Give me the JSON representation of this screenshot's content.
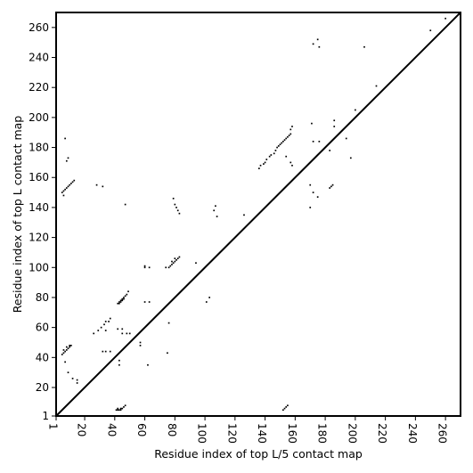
{
  "chart_data": {
    "type": "scatter",
    "xlabel": "Residue index of top L/5 contact map",
    "ylabel": "Residue index of top L contact map",
    "xlim": [
      1,
      270
    ],
    "ylim": [
      1,
      270
    ],
    "x_ticks": [
      1,
      20,
      40,
      60,
      80,
      100,
      120,
      140,
      160,
      180,
      200,
      220,
      240,
      260
    ],
    "y_ticks": [
      1,
      20,
      40,
      60,
      80,
      100,
      120,
      140,
      160,
      180,
      200,
      220,
      240,
      260
    ],
    "x_tick_labels": [
      "1",
      "20",
      "40",
      "60",
      "80",
      "100",
      "120",
      "140",
      "160",
      "180",
      "200",
      "220",
      "240",
      "260"
    ],
    "y_tick_labels": [
      "1",
      "20",
      "40",
      "60",
      "80",
      "100",
      "120",
      "140",
      "160",
      "180",
      "200",
      "220",
      "240",
      "260"
    ],
    "x_tick_rotation_deg": -90,
    "diagonal": {
      "from": [
        1,
        1
      ],
      "to": [
        270,
        270
      ]
    },
    "marker_color": "#000000",
    "series": [
      {
        "region": "above-diagonal",
        "points": [
          [
            5,
            42
          ],
          [
            6,
            43
          ],
          [
            7,
            44
          ],
          [
            8,
            45
          ],
          [
            9,
            46
          ],
          [
            10,
            47
          ],
          [
            11,
            48
          ],
          [
            6,
            45
          ],
          [
            8,
            47
          ],
          [
            10,
            48
          ],
          [
            7,
            37
          ],
          [
            9,
            30
          ],
          [
            12,
            26
          ],
          [
            15,
            23
          ],
          [
            15,
            25
          ],
          [
            5,
            150
          ],
          [
            6,
            151
          ],
          [
            7,
            152
          ],
          [
            8,
            153
          ],
          [
            9,
            154
          ],
          [
            10,
            155
          ],
          [
            11,
            156
          ],
          [
            12,
            157
          ],
          [
            13,
            158
          ],
          [
            6,
            148
          ],
          [
            7,
            186
          ],
          [
            8,
            171
          ],
          [
            9,
            173
          ],
          [
            28,
            155
          ],
          [
            32,
            154
          ],
          [
            29,
            58
          ],
          [
            31,
            60
          ],
          [
            33,
            62
          ],
          [
            34,
            64
          ],
          [
            37,
            66
          ],
          [
            26,
            56
          ],
          [
            34,
            58
          ],
          [
            36,
            64
          ],
          [
            32,
            44
          ],
          [
            34,
            44
          ],
          [
            37,
            44
          ],
          [
            42,
            76
          ],
          [
            43,
            77
          ],
          [
            44,
            78
          ],
          [
            45,
            79
          ],
          [
            46,
            80
          ],
          [
            47,
            81
          ],
          [
            48,
            82
          ],
          [
            49,
            84
          ],
          [
            43,
            76
          ],
          [
            44,
            77
          ],
          [
            45,
            78
          ],
          [
            46,
            79
          ],
          [
            45,
            56
          ],
          [
            48,
            56
          ],
          [
            50,
            56
          ],
          [
            42,
            59
          ],
          [
            45,
            59
          ],
          [
            43,
            38
          ],
          [
            43,
            35
          ],
          [
            57,
            48
          ],
          [
            57,
            50
          ],
          [
            62,
            35
          ],
          [
            60,
            77
          ],
          [
            63,
            77
          ],
          [
            60,
            100
          ],
          [
            63,
            100
          ],
          [
            60,
            101
          ],
          [
            75,
            43
          ],
          [
            76,
            63
          ],
          [
            74,
            100
          ],
          [
            76,
            100
          ],
          [
            77,
            101
          ],
          [
            78,
            102
          ],
          [
            79,
            103
          ],
          [
            80,
            104
          ],
          [
            81,
            105
          ],
          [
            82,
            106
          ],
          [
            83,
            107
          ],
          [
            78,
            104
          ],
          [
            80,
            106
          ],
          [
            94,
            103
          ],
          [
            79,
            146
          ],
          [
            80,
            142
          ],
          [
            81,
            140
          ],
          [
            82,
            138
          ],
          [
            83,
            136
          ],
          [
            101,
            77
          ],
          [
            103,
            80
          ],
          [
            106,
            138
          ],
          [
            107,
            141
          ],
          [
            108,
            134
          ],
          [
            126,
            135
          ]
        ]
      },
      {
        "region": "below-diagonal",
        "points": [
          [
            41,
            5
          ],
          [
            42,
            5
          ],
          [
            43,
            5
          ],
          [
            44,
            5
          ],
          [
            45,
            6
          ],
          [
            46,
            7
          ],
          [
            47,
            8
          ],
          [
            42,
            6
          ],
          [
            44,
            6
          ],
          [
            47,
            142
          ],
          [
            136,
            166
          ],
          [
            137,
            168
          ],
          [
            139,
            169
          ],
          [
            140,
            170
          ],
          [
            141,
            172
          ],
          [
            143,
            174
          ],
          [
            144,
            175
          ],
          [
            146,
            176
          ],
          [
            147,
            178
          ],
          [
            148,
            180
          ],
          [
            149,
            181
          ],
          [
            150,
            182
          ],
          [
            151,
            183
          ],
          [
            152,
            184
          ],
          [
            153,
            185
          ],
          [
            154,
            186
          ],
          [
            155,
            187
          ],
          [
            156,
            188
          ],
          [
            157,
            189
          ],
          [
            157,
            192
          ],
          [
            158,
            194
          ],
          [
            157,
            170
          ],
          [
            158,
            168
          ],
          [
            154,
            174
          ],
          [
            152,
            5
          ],
          [
            153,
            6
          ],
          [
            154,
            7
          ],
          [
            155,
            8
          ],
          [
            170,
            155
          ],
          [
            170,
            140
          ],
          [
            172,
            150
          ],
          [
            171,
            196
          ],
          [
            172,
            184
          ],
          [
            175,
            147
          ],
          [
            176,
            184
          ],
          [
            183,
            178
          ],
          [
            183,
            153
          ],
          [
            184,
            154
          ],
          [
            185,
            155
          ],
          [
            186,
            198
          ],
          [
            186,
            194
          ],
          [
            172,
            249
          ],
          [
            176,
            247
          ],
          [
            175,
            252
          ],
          [
            194,
            186
          ],
          [
            197,
            173
          ],
          [
            200,
            205
          ],
          [
            206,
            247
          ],
          [
            214,
            221
          ],
          [
            250,
            258
          ],
          [
            260,
            266
          ]
        ]
      }
    ]
  }
}
